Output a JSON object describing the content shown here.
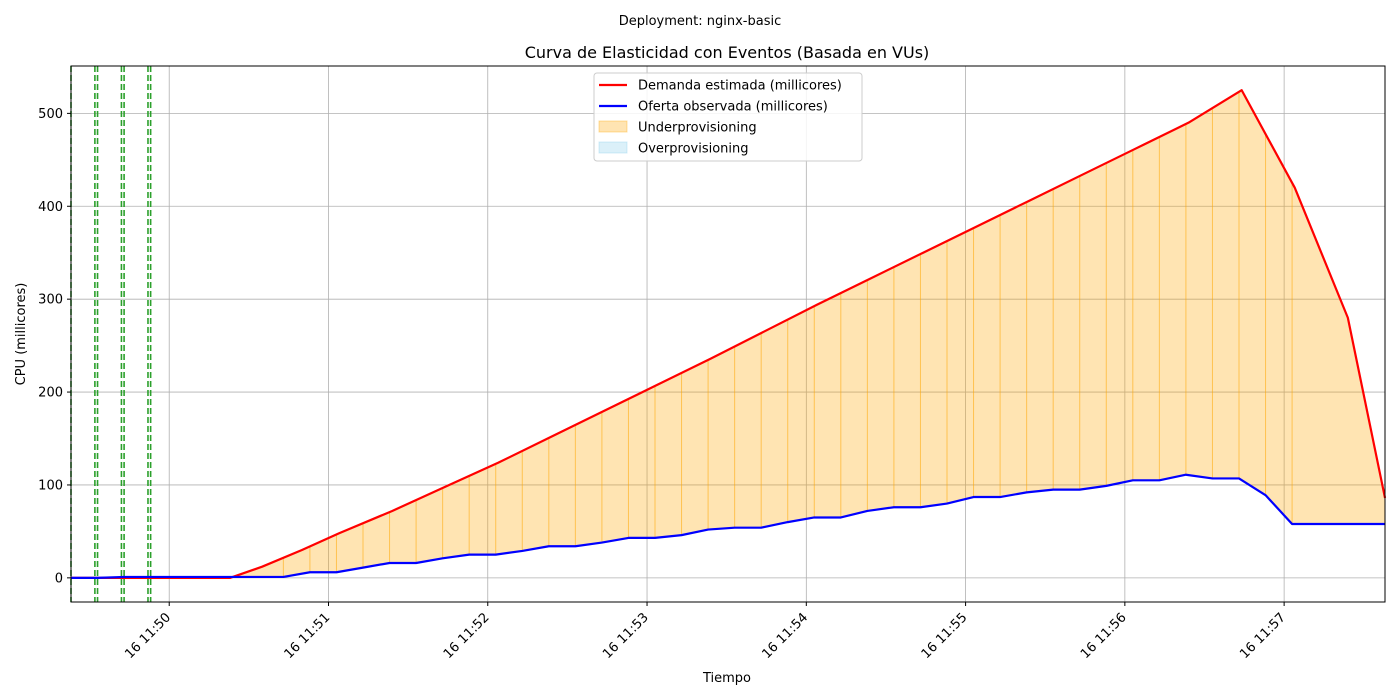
{
  "chart_data": {
    "type": "line",
    "suptitle": "Deployment: nginx-basic",
    "title": "Curva de Elasticidad con Eventos (Basada en VUs)",
    "xlabel": "Tiempo",
    "ylabel": "CPU (millicores)",
    "x_unit": "time (min:sec)",
    "xlim": [
      "11:49:23",
      "11:57:38"
    ],
    "ylim": [
      -26,
      551
    ],
    "x_ticks": [
      {
        "t": "11:50:00",
        "label": "16 11:50"
      },
      {
        "t": "11:51:00",
        "label": "16 11:51"
      },
      {
        "t": "11:52:00",
        "label": "16 11:52"
      },
      {
        "t": "11:53:00",
        "label": "16 11:53"
      },
      {
        "t": "11:54:00",
        "label": "16 11:54"
      },
      {
        "t": "11:55:00",
        "label": "16 11:55"
      },
      {
        "t": "11:56:00",
        "label": "16 11:56"
      },
      {
        "t": "11:57:00",
        "label": "16 11:57"
      }
    ],
    "y_ticks": [
      0,
      100,
      200,
      300,
      400,
      500
    ],
    "grid": true,
    "legend_position": "top-center",
    "legend": [
      {
        "label": "Demanda estimada (millicores)",
        "kind": "line",
        "color": "#ff0000"
      },
      {
        "label": "Oferta observada (millicores)",
        "kind": "line",
        "color": "#0000ff"
      },
      {
        "label": "Underprovisioning",
        "kind": "patch",
        "color": "#ffa500"
      },
      {
        "label": "Overprovisioning",
        "kind": "patch",
        "color": "#87ceeb"
      }
    ],
    "event_lines": {
      "color": "#2ca02c",
      "style": "dashed",
      "times": [
        "11:49:23",
        "11:49:32",
        "11:49:33",
        "11:49:42",
        "11:49:43",
        "11:49:52",
        "11:49:53"
      ]
    },
    "series": [
      {
        "name": "Demanda estimada (millicores)",
        "color": "#ff0000",
        "points": [
          [
            "11:49:23",
            0
          ],
          [
            "11:49:53",
            0
          ],
          [
            "11:50:23",
            0
          ],
          [
            "11:50:35",
            12
          ],
          [
            "11:50:50",
            30
          ],
          [
            "11:51:04",
            48
          ],
          [
            "11:51:24",
            72
          ],
          [
            "11:51:44",
            98
          ],
          [
            "11:52:04",
            124
          ],
          [
            "11:52:24",
            152
          ],
          [
            "11:52:44",
            180
          ],
          [
            "11:53:04",
            208
          ],
          [
            "11:53:24",
            236
          ],
          [
            "11:53:44",
            265
          ],
          [
            "11:54:04",
            294
          ],
          [
            "11:54:24",
            322
          ],
          [
            "11:54:44",
            350
          ],
          [
            "11:55:04",
            378
          ],
          [
            "11:55:24",
            406
          ],
          [
            "11:55:44",
            434
          ],
          [
            "11:56:04",
            462
          ],
          [
            "11:56:24",
            490
          ],
          [
            "11:56:44",
            525
          ],
          [
            "11:57:04",
            420
          ],
          [
            "11:57:24",
            280
          ],
          [
            "11:57:38",
            86
          ]
        ]
      },
      {
        "name": "Oferta observada (millicores)",
        "color": "#0000ff",
        "points": [
          [
            "11:49:23",
            0
          ],
          [
            "11:49:33",
            0
          ],
          [
            "11:49:43",
            1
          ],
          [
            "11:50:03",
            1
          ],
          [
            "11:50:43",
            1
          ],
          [
            "11:50:53",
            6
          ],
          [
            "11:51:03",
            6
          ],
          [
            "11:51:13",
            11
          ],
          [
            "11:51:23",
            16
          ],
          [
            "11:51:33",
            16
          ],
          [
            "11:51:43",
            21
          ],
          [
            "11:51:53",
            25
          ],
          [
            "11:52:03",
            25
          ],
          [
            "11:52:13",
            29
          ],
          [
            "11:52:23",
            34
          ],
          [
            "11:52:33",
            34
          ],
          [
            "11:52:43",
            38
          ],
          [
            "11:52:53",
            43
          ],
          [
            "11:53:03",
            43
          ],
          [
            "11:53:13",
            46
          ],
          [
            "11:53:23",
            52
          ],
          [
            "11:53:33",
            54
          ],
          [
            "11:53:43",
            54
          ],
          [
            "11:53:53",
            60
          ],
          [
            "11:54:03",
            65
          ],
          [
            "11:54:13",
            65
          ],
          [
            "11:54:23",
            72
          ],
          [
            "11:54:33",
            76
          ],
          [
            "11:54:43",
            76
          ],
          [
            "11:54:53",
            80
          ],
          [
            "11:55:03",
            87
          ],
          [
            "11:55:13",
            87
          ],
          [
            "11:55:23",
            92
          ],
          [
            "11:55:33",
            95
          ],
          [
            "11:55:43",
            95
          ],
          [
            "11:55:53",
            99
          ],
          [
            "11:56:03",
            105
          ],
          [
            "11:56:13",
            105
          ],
          [
            "11:56:23",
            111
          ],
          [
            "11:56:33",
            107
          ],
          [
            "11:56:43",
            107
          ],
          [
            "11:56:53",
            89
          ],
          [
            "11:57:03",
            58
          ],
          [
            "11:57:38",
            58
          ]
        ]
      }
    ]
  }
}
